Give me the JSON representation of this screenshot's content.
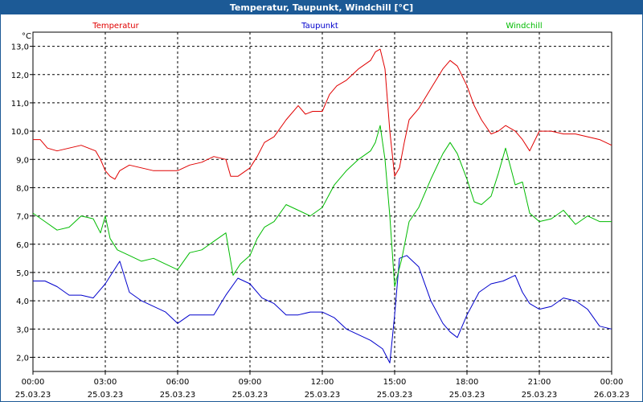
{
  "window": {
    "title": "Temperatur, Taupunkt, Windchill [°C]"
  },
  "colors": {
    "title_bar": "#1c5a96",
    "temperatur": "#e00000",
    "taupunkt": "#0000cc",
    "windchill": "#00bb00",
    "grid": "#000000"
  },
  "chart_data": {
    "type": "line",
    "title": "Temperatur, Taupunkt, Windchill [°C]",
    "ylabel": "°C",
    "ylim": [
      1.5,
      13.5
    ],
    "yticks": [
      "2,0",
      "3,0",
      "4,0",
      "5,0",
      "6,0",
      "7,0",
      "8,0",
      "9,0",
      "10,0",
      "11,0",
      "12,0",
      "13,0"
    ],
    "ytick_values": [
      2,
      3,
      4,
      5,
      6,
      7,
      8,
      9,
      10,
      11,
      12,
      13
    ],
    "xlim": [
      0,
      24
    ],
    "xticks": [
      {
        "time": "00:00",
        "date": "25.03.23"
      },
      {
        "time": "03:00",
        "date": "25.03.23"
      },
      {
        "time": "06:00",
        "date": "25.03.23"
      },
      {
        "time": "09:00",
        "date": "25.03.23"
      },
      {
        "time": "12:00",
        "date": "25.03.23"
      },
      {
        "time": "15:00",
        "date": "25.03.23"
      },
      {
        "time": "18:00",
        "date": "25.03.23"
      },
      {
        "time": "21:00",
        "date": "25.03.23"
      },
      {
        "time": "00:00",
        "date": "26.03.23"
      }
    ],
    "xtick_values": [
      0,
      3,
      6,
      9,
      12,
      15,
      18,
      21,
      24
    ],
    "grid": true,
    "series": [
      {
        "name": "Temperatur",
        "color": "#e00000",
        "x": [
          0,
          0.3,
          0.6,
          1,
          1.5,
          2,
          2.3,
          2.6,
          2.8,
          3,
          3.2,
          3.4,
          3.6,
          4,
          4.5,
          5,
          5.5,
          6,
          6.5,
          7,
          7.5,
          8,
          8.2,
          8.5,
          9,
          9.3,
          9.6,
          10,
          10.5,
          11,
          11.3,
          11.6,
          12,
          12.3,
          12.6,
          13,
          13.5,
          14,
          14.2,
          14.4,
          14.6,
          14.8,
          15,
          15.2,
          15.4,
          15.6,
          16,
          16.5,
          17,
          17.3,
          17.6,
          18,
          18.3,
          18.6,
          19,
          19.3,
          19.6,
          20,
          20.3,
          20.6,
          21,
          21.5,
          22,
          22.5,
          23,
          23.5,
          24
        ],
        "y": [
          9.7,
          9.7,
          9.4,
          9.3,
          9.4,
          9.5,
          9.4,
          9.3,
          9.0,
          8.6,
          8.4,
          8.3,
          8.6,
          8.8,
          8.7,
          8.6,
          8.6,
          8.6,
          8.8,
          8.9,
          9.1,
          9.0,
          8.4,
          8.4,
          8.7,
          9.1,
          9.6,
          9.8,
          10.4,
          10.9,
          10.6,
          10.7,
          10.7,
          11.3,
          11.6,
          11.8,
          12.2,
          12.5,
          12.8,
          12.9,
          12.2,
          10.0,
          8.4,
          8.7,
          9.6,
          10.4,
          10.8,
          11.5,
          12.2,
          12.5,
          12.3,
          11.6,
          10.9,
          10.4,
          9.9,
          10.0,
          10.2,
          10.0,
          9.7,
          9.3,
          10.0,
          10.0,
          9.9,
          9.9,
          9.8,
          9.7,
          9.5
        ]
      },
      {
        "name": "Taupunkt",
        "color": "#0000cc",
        "x": [
          0,
          0.5,
          1,
          1.5,
          2,
          2.5,
          3,
          3.3,
          3.6,
          4,
          4.5,
          5,
          5.5,
          6,
          6.5,
          7,
          7.5,
          8,
          8.5,
          9,
          9.5,
          10,
          10.5,
          11,
          11.5,
          12,
          12.5,
          13,
          13.5,
          14,
          14.5,
          14.8,
          15,
          15.2,
          15.5,
          16,
          16.5,
          17,
          17.3,
          17.6,
          18,
          18.5,
          19,
          19.5,
          20,
          20.3,
          20.6,
          21,
          21.5,
          22,
          22.5,
          23,
          23.5,
          24
        ],
        "y": [
          4.7,
          4.7,
          4.5,
          4.2,
          4.2,
          4.1,
          4.6,
          5.0,
          5.4,
          4.3,
          4.0,
          3.8,
          3.6,
          3.2,
          3.5,
          3.5,
          3.5,
          4.2,
          4.8,
          4.6,
          4.1,
          3.9,
          3.5,
          3.5,
          3.6,
          3.6,
          3.4,
          3.0,
          2.8,
          2.6,
          2.3,
          1.8,
          3.5,
          5.5,
          5.6,
          5.2,
          4.0,
          3.2,
          2.9,
          2.7,
          3.5,
          4.3,
          4.6,
          4.7,
          4.9,
          4.3,
          3.9,
          3.7,
          3.8,
          4.1,
          4.0,
          3.7,
          3.1,
          3.0
        ]
      },
      {
        "name": "Windchill",
        "color": "#00bb00",
        "x": [
          0,
          0.5,
          1,
          1.5,
          2,
          2.5,
          2.8,
          3,
          3.2,
          3.5,
          4,
          4.5,
          5,
          5.5,
          6,
          6.5,
          7,
          7.5,
          8,
          8.3,
          8.6,
          9,
          9.3,
          9.6,
          10,
          10.5,
          11,
          11.5,
          12,
          12.5,
          13,
          13.5,
          14,
          14.2,
          14.4,
          14.6,
          14.8,
          15,
          15.3,
          15.6,
          16,
          16.5,
          17,
          17.3,
          17.6,
          18,
          18.3,
          18.6,
          19,
          19.3,
          19.6,
          20,
          20.3,
          20.6,
          21,
          21.5,
          22,
          22.5,
          23,
          23.5,
          24
        ],
        "y": [
          7.1,
          6.8,
          6.5,
          6.6,
          7.0,
          6.9,
          6.4,
          7.0,
          6.2,
          5.8,
          5.6,
          5.4,
          5.5,
          5.3,
          5.1,
          5.7,
          5.8,
          6.1,
          6.4,
          4.9,
          5.3,
          5.6,
          6.2,
          6.6,
          6.8,
          7.4,
          7.2,
          7.0,
          7.3,
          8.1,
          8.6,
          9.0,
          9.3,
          9.6,
          10.2,
          9.0,
          7.0,
          4.5,
          5.5,
          6.8,
          7.3,
          8.3,
          9.2,
          9.6,
          9.2,
          8.3,
          7.5,
          7.4,
          7.7,
          8.5,
          9.4,
          8.1,
          8.2,
          7.1,
          6.8,
          6.9,
          7.2,
          6.7,
          7.0,
          6.8,
          6.8
        ]
      }
    ]
  }
}
